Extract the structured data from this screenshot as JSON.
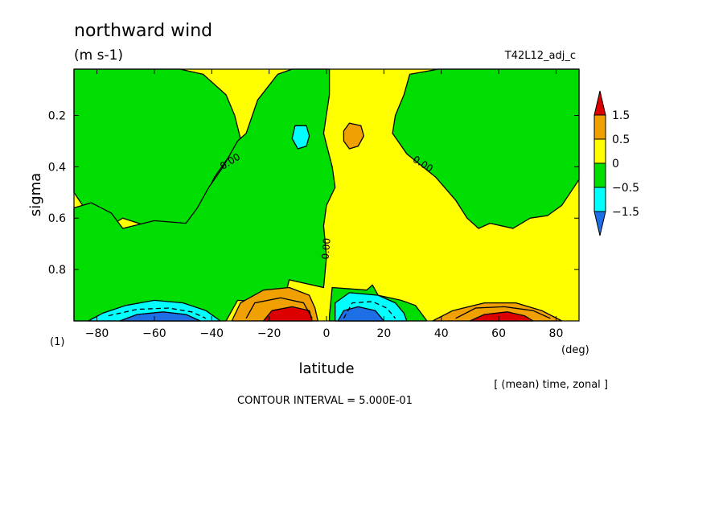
{
  "chart_data": {
    "type": "heatmap",
    "title": "northward wind",
    "units": "(m s-1)",
    "case_label": "T42L12_adj_c",
    "panel_label": "(1)",
    "xlabel": "latitude",
    "x_unit": "(deg)",
    "ylabel": "sigma",
    "xlim": [
      -88,
      88
    ],
    "ylim": [
      0.02,
      1.0
    ],
    "y_inverted": true,
    "x_ticks": [
      -80,
      -60,
      -40,
      -20,
      0,
      20,
      40,
      60,
      80
    ],
    "y_ticks": [
      0.2,
      0.4,
      0.6,
      0.8
    ],
    "y_tick_labels": [
      "0.2",
      "0.4",
      "0.6",
      "0.8"
    ],
    "subtitle": "[ (mean) time, zonal ]",
    "contour_interval_text": "CONTOUR INTERVAL = 5.000E-01",
    "contour_labels": [
      "0.00",
      "0.00",
      "0.00"
    ],
    "legend": {
      "placement": "right",
      "levels": [
        "1.5",
        "0.5",
        "0",
        "-0.5",
        "-1.5"
      ],
      "colors": [
        "#dd0000",
        "#f0a000",
        "#ffff00",
        "#00dd00",
        "#00ffff",
        "#1e6ee6"
      ]
    },
    "regions": [
      {
        "name": "green-left-upper",
        "range": "-0.5 to 0",
        "color": "#00dd00",
        "boundary": [
          [
            -88,
            0.02
          ],
          [
            -51,
            0.02
          ],
          [
            -43,
            0.04
          ],
          [
            -35,
            0.12
          ],
          [
            -32,
            0.2
          ],
          [
            -30,
            0.29
          ],
          [
            -34,
            0.36
          ],
          [
            -39,
            0.44
          ],
          [
            -43,
            0.53
          ],
          [
            -47,
            0.6
          ],
          [
            -49,
            0.64
          ],
          [
            -60,
            0.64
          ],
          [
            -71,
            0.6
          ],
          [
            -77,
            0.64
          ],
          [
            -81,
            0.61
          ],
          [
            -85,
            0.55
          ],
          [
            -88,
            0.5
          ]
        ]
      },
      {
        "name": "green-left-lower",
        "range": "-0.5 to 0",
        "color": "#00dd00",
        "boundary": [
          [
            -88,
            0.56
          ],
          [
            -82,
            0.54
          ],
          [
            -75,
            0.58
          ],
          [
            -71,
            0.64
          ],
          [
            -60,
            0.61
          ],
          [
            -49,
            0.62
          ],
          [
            -45,
            0.56
          ],
          [
            -41,
            0.48
          ],
          [
            -36,
            0.4
          ],
          [
            -31,
            0.3
          ],
          [
            -28,
            0.27
          ],
          [
            -24,
            0.14
          ],
          [
            -17,
            0.04
          ],
          [
            -12,
            0.02
          ],
          [
            1,
            0.02
          ],
          [
            1,
            0.12
          ],
          [
            -1,
            0.27
          ],
          [
            2,
            0.4
          ],
          [
            3,
            0.48
          ],
          [
            0,
            0.55
          ],
          [
            -1,
            0.63
          ],
          [
            0,
            0.75
          ],
          [
            -1,
            0.87
          ],
          [
            -13,
            0.84
          ],
          [
            -15,
            0.93
          ],
          [
            -31,
            0.92
          ],
          [
            -35,
            1.0
          ],
          [
            -88,
            1.0
          ]
        ]
      },
      {
        "name": "green-right-lower",
        "range": "-0.5 to 0",
        "color": "#00dd00",
        "boundary": [
          [
            1,
            0.98
          ],
          [
            2,
            0.87
          ],
          [
            14,
            0.88
          ],
          [
            16,
            0.86
          ],
          [
            18,
            0.9
          ],
          [
            26,
            0.92
          ],
          [
            31,
            0.94
          ],
          [
            35,
            1.0
          ],
          [
            1,
            1.0
          ]
        ]
      },
      {
        "name": "green-right-upper",
        "range": "-0.5 to 0",
        "color": "#00dd00",
        "boundary": [
          [
            39,
            0.02
          ],
          [
            29,
            0.04
          ],
          [
            27,
            0.12
          ],
          [
            24,
            0.2
          ],
          [
            23,
            0.27
          ],
          [
            28,
            0.35
          ],
          [
            38,
            0.44
          ],
          [
            45,
            0.53
          ],
          [
            49,
            0.6
          ],
          [
            53,
            0.64
          ],
          [
            57,
            0.62
          ],
          [
            65,
            0.64
          ],
          [
            71,
            0.6
          ],
          [
            77,
            0.59
          ],
          [
            82,
            0.55
          ],
          [
            85,
            0.5
          ],
          [
            88,
            0.45
          ],
          [
            88,
            0.02
          ]
        ]
      },
      {
        "name": "cyan-upper-left",
        "range": "-1.5 to -0.5",
        "color": "#00ffff",
        "boundary": [
          [
            -11,
            0.24
          ],
          [
            -7,
            0.24
          ],
          [
            -6,
            0.28
          ],
          [
            -7,
            0.32
          ],
          [
            -10,
            0.33
          ],
          [
            -12,
            0.29
          ]
        ]
      },
      {
        "name": "orange-upper",
        "range": "0.5 to 1.5",
        "color": "#f0a000",
        "boundary": [
          [
            8,
            0.23
          ],
          [
            12,
            0.24
          ],
          [
            13,
            0.28
          ],
          [
            11,
            0.32
          ],
          [
            8,
            0.33
          ],
          [
            6,
            0.3
          ],
          [
            6,
            0.26
          ]
        ]
      },
      {
        "name": "cyan-low-left",
        "range": "-1.5 to -0.5",
        "color": "#00ffff",
        "boundary": [
          [
            -83,
            1.0
          ],
          [
            -78,
            0.97
          ],
          [
            -70,
            0.94
          ],
          [
            -60,
            0.92
          ],
          [
            -50,
            0.93
          ],
          [
            -42,
            0.96
          ],
          [
            -37,
            1.0
          ]
        ]
      },
      {
        "name": "blue-low-left",
        "range": "< -1.5",
        "color": "#1e6ee6",
        "boundary": [
          [
            -72,
            1.0
          ],
          [
            -66,
            0.975
          ],
          [
            -57,
            0.965
          ],
          [
            -49,
            0.975
          ],
          [
            -44,
            1.0
          ]
        ]
      },
      {
        "name": "orange-low-left",
        "range": "0.5 to 1.5",
        "color": "#f0a000",
        "boundary": [
          [
            -33,
            1.0
          ],
          [
            -30,
            0.93
          ],
          [
            -22,
            0.88
          ],
          [
            -13,
            0.87
          ],
          [
            -6,
            0.9
          ],
          [
            -4,
            0.95
          ],
          [
            -3,
            1.0
          ]
        ]
      },
      {
        "name": "red-low-left",
        "range": "> 1.5",
        "color": "#dd0000",
        "boundary": [
          [
            -22,
            1.0
          ],
          [
            -19,
            0.96
          ],
          [
            -12,
            0.945
          ],
          [
            -6,
            0.96
          ],
          [
            -5,
            1.0
          ]
        ]
      },
      {
        "name": "cyan-low-right",
        "range": "-1.5 to -0.5",
        "color": "#00ffff",
        "boundary": [
          [
            3,
            1.0
          ],
          [
            3,
            0.93
          ],
          [
            8,
            0.89
          ],
          [
            18,
            0.9
          ],
          [
            24,
            0.93
          ],
          [
            27,
            0.97
          ],
          [
            28,
            1.0
          ]
        ]
      },
      {
        "name": "blue-low-right",
        "range": "< -1.5",
        "color": "#1e6ee6",
        "boundary": [
          [
            4,
            1.0
          ],
          [
            6,
            0.96
          ],
          [
            11,
            0.945
          ],
          [
            17,
            0.96
          ],
          [
            20,
            1.0
          ]
        ]
      },
      {
        "name": "orange-low-right",
        "range": "0.5 to 1.5",
        "color": "#f0a000",
        "boundary": [
          [
            37,
            1.0
          ],
          [
            44,
            0.96
          ],
          [
            55,
            0.93
          ],
          [
            66,
            0.93
          ],
          [
            75,
            0.96
          ],
          [
            82,
            1.0
          ]
        ]
      },
      {
        "name": "red-low-right",
        "range": "> 1.5",
        "color": "#dd0000",
        "boundary": [
          [
            50,
            1.0
          ],
          [
            55,
            0.975
          ],
          [
            63,
            0.965
          ],
          [
            69,
            0.98
          ],
          [
            72,
            1.0
          ]
        ]
      }
    ],
    "dashed_contours": [
      [
        [
          -76,
          0.98
        ],
        [
          -66,
          0.955
        ],
        [
          -55,
          0.95
        ],
        [
          -47,
          0.965
        ],
        [
          -42,
          0.99
        ]
      ],
      [
        [
          6,
          0.99
        ],
        [
          9,
          0.93
        ],
        [
          16,
          0.925
        ],
        [
          21,
          0.95
        ],
        [
          24,
          0.99
        ]
      ]
    ],
    "solid_contours": [
      [
        [
          -28,
          0.99
        ],
        [
          -25,
          0.93
        ],
        [
          -16,
          0.91
        ],
        [
          -8,
          0.93
        ],
        [
          -5,
          0.99
        ]
      ],
      [
        [
          45,
          0.99
        ],
        [
          52,
          0.95
        ],
        [
          62,
          0.945
        ],
        [
          72,
          0.96
        ],
        [
          78,
          0.99
        ]
      ]
    ]
  }
}
